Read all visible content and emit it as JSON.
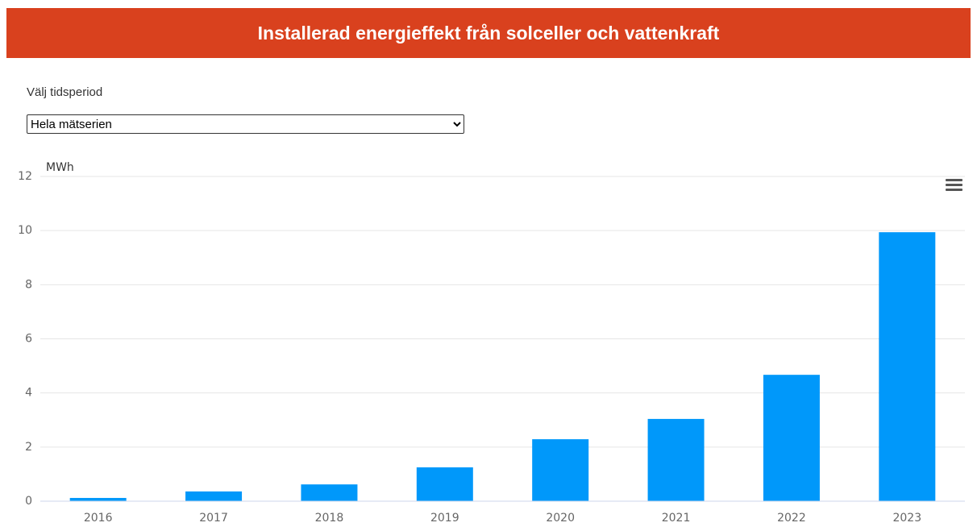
{
  "header": {
    "title": "Installerad energieffekt från solceller och vattenkraft"
  },
  "period": {
    "label": "Välj tidsperiod",
    "selected": "Hela mätserien"
  },
  "chart_data": {
    "type": "bar",
    "y_label": "MWh",
    "categories": [
      "2016",
      "2017",
      "2018",
      "2019",
      "2020",
      "2021",
      "2022",
      "2023"
    ],
    "values": [
      0.12,
      0.36,
      0.62,
      1.25,
      2.29,
      3.04,
      4.67,
      9.94
    ],
    "color": "#0098fa",
    "ylim": [
      0,
      12
    ],
    "yticks": [
      0,
      2,
      4,
      6,
      8,
      10,
      12
    ],
    "grid": true
  }
}
